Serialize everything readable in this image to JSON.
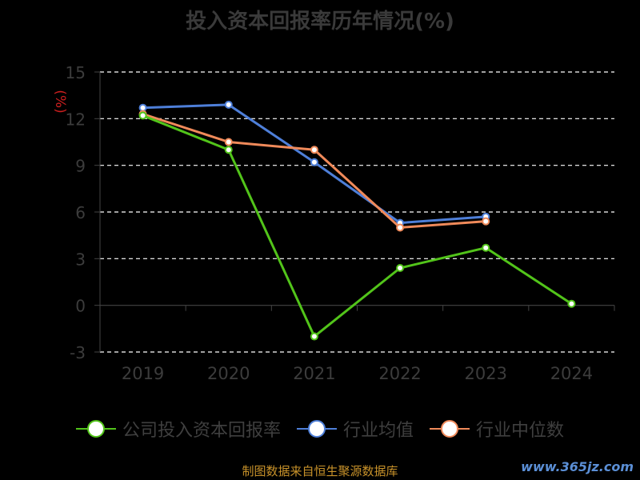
{
  "chart_data": {
    "type": "line",
    "title": "投入资本回报率历年情况(%)",
    "ylabel": "(%)",
    "categories": [
      "2019",
      "2020",
      "2021",
      "2022",
      "2023",
      "2024"
    ],
    "ylim": [
      -3,
      15
    ],
    "yticks": [
      -3,
      0,
      3,
      6,
      9,
      12,
      15
    ],
    "grid": true,
    "legend_position": "bottom",
    "series": [
      {
        "name": "公司投入资本回报率",
        "color": "#52c41a",
        "values": [
          12.2,
          10.0,
          -2.0,
          2.4,
          3.7,
          0.1
        ]
      },
      {
        "name": "行业均值",
        "color": "#4e7fd9",
        "values": [
          12.7,
          12.9,
          9.2,
          5.3,
          5.7,
          null
        ]
      },
      {
        "name": "行业中位数",
        "color": "#f08a5a",
        "values": [
          12.3,
          10.5,
          10.0,
          5.0,
          5.4,
          null
        ]
      }
    ]
  },
  "footer": {
    "source": "制图数据来自恒生聚源数据库",
    "watermark": "www.365jz.com"
  }
}
